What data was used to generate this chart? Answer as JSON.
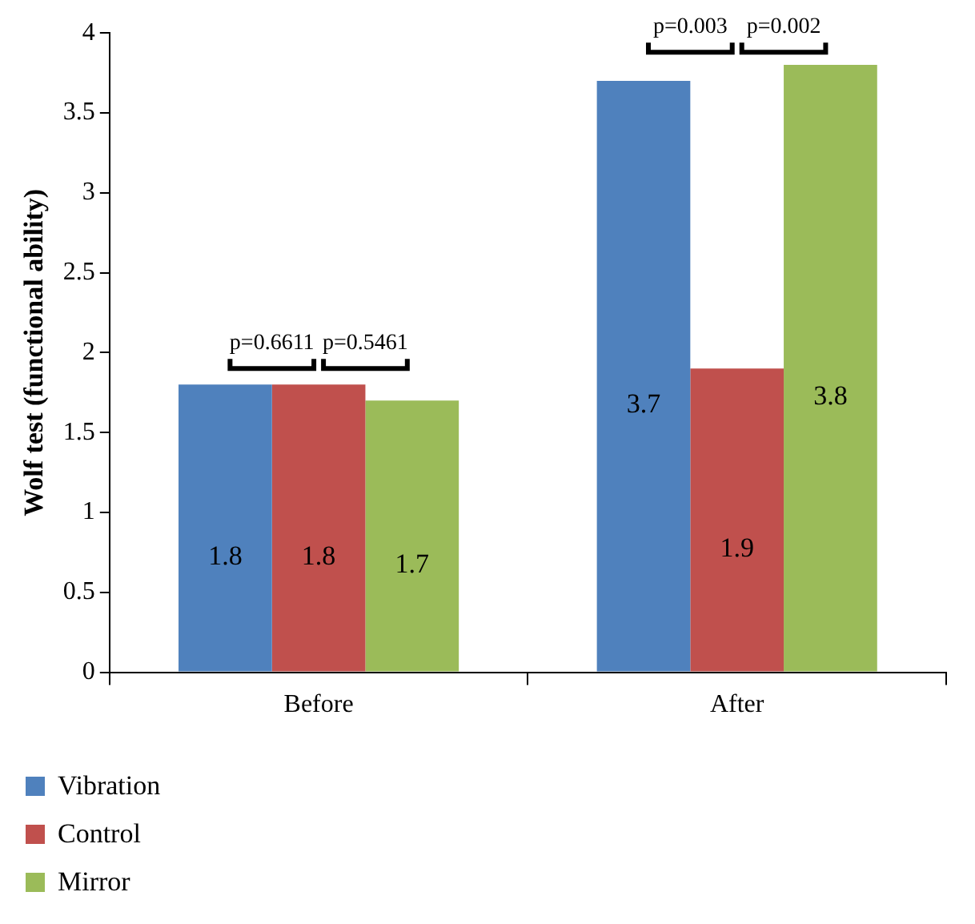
{
  "chart_data": {
    "type": "bar",
    "ylabel": "Wolf test (functional ability)",
    "categories": [
      "Before",
      "After"
    ],
    "series": [
      {
        "name": "Vibration",
        "color": "#4f81bd",
        "values": [
          1.8,
          3.7
        ]
      },
      {
        "name": "Control",
        "color": "#c0504d",
        "values": [
          1.8,
          1.9
        ]
      },
      {
        "name": "Mirror",
        "color": "#9bbb59",
        "values": [
          1.7,
          3.8
        ]
      }
    ],
    "ylim": [
      0,
      4
    ],
    "yticks": [
      0,
      0.5,
      1,
      1.5,
      2,
      2.5,
      3,
      3.5,
      4
    ],
    "grid": false,
    "legend": "bottom left",
    "data_labels": true,
    "annotations": [
      "p=0.6611",
      "p=0.5461",
      "p=0.003",
      "p=0.002"
    ]
  }
}
